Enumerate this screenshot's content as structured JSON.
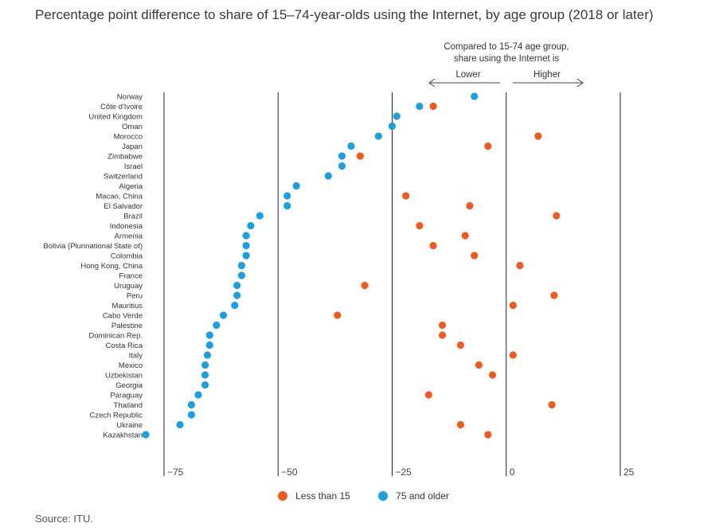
{
  "title": "Percentage point difference to share of 15–74-year-olds using the Internet, by age group (2018 or later)",
  "source": "Source: ITU.",
  "annotation": {
    "heading_line1": "Compared to 15-74 age group,",
    "heading_line2": "share using the Internet is",
    "lower": "Lower",
    "higher": "Higher"
  },
  "colors": {
    "less_than_15": "#f05a1e",
    "older_75": "#1aa0e0",
    "axis": "#222222"
  },
  "chart_data": {
    "type": "scatter",
    "title": "Percentage point difference to share of 15–74-year-olds using the Internet, by age group (2018 or later)",
    "xlim": [
      -75,
      25
    ],
    "xticks": [
      -75,
      -50,
      -25,
      0,
      25
    ],
    "xtick_labels": [
      "−75",
      "−50",
      "−25",
      "0",
      "25"
    ],
    "legend_position": "bottom",
    "categories": [
      "Norway",
      "Côte d'Ivoire",
      "United Kingdom",
      "Oman",
      "Morocco",
      "Japan",
      "Zimbabwe",
      "Israel",
      "Switzerland",
      "Algeria",
      "Macao, China",
      "El Salvador",
      "Brazil",
      "Indonesia",
      "Armenia",
      "Bolivia (Plurinational State of)",
      "Colombia",
      "Hong Kong, China",
      "France",
      "Uruguay",
      "Peru",
      "Mauritius",
      "Cabo Verde",
      "Palestine",
      "Dominican Rep.",
      "Costa Rica",
      "Italy",
      "Mexico",
      "Uzbekistan",
      "Georgia",
      "Paraguay",
      "Thailand",
      "Czech Republic",
      "Ukraine",
      "Kazakhstan"
    ],
    "series": [
      {
        "name": "Less than 15",
        "values": [
          null,
          -16,
          null,
          null,
          7,
          -4,
          -32,
          null,
          null,
          null,
          -22,
          -8,
          11,
          -19,
          -9,
          -16,
          -7,
          3,
          null,
          -31,
          10.5,
          1.5,
          -37,
          -14,
          -14,
          -10,
          1.5,
          -6,
          -3,
          null,
          -17,
          10,
          null,
          -10,
          -4
        ]
      },
      {
        "name": "75 and older",
        "values": [
          -7,
          -19,
          -24,
          -25,
          -28,
          -34,
          -36,
          -36,
          -39,
          -46,
          -48,
          -48,
          -54,
          -56,
          -57,
          -57,
          -57,
          -58,
          -58,
          -59,
          -59,
          -59.5,
          -62,
          -63.5,
          -65,
          -65,
          -65.5,
          -66,
          -66,
          -66,
          -67.5,
          -69,
          -69,
          -71.5,
          -79
        ]
      }
    ]
  }
}
